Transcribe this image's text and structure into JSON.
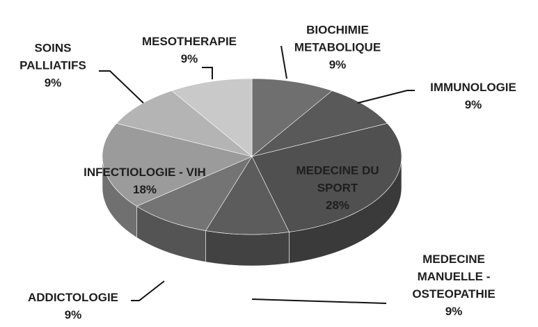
{
  "chart_data": {
    "type": "pie3d",
    "categories": [
      "BIOCHIMIE METABOLIQUE",
      "IMMUNOLOGIE",
      "MEDECINE DU SPORT",
      "MEDECINE MANUELLE - OSTEOPATHIE",
      "ADDICTOLOGIE",
      "INFECTIOLOGIE - VIH",
      "SOINS PALLIATIFS",
      "MESOTHERAPIE"
    ],
    "values": [
      9,
      9,
      28,
      9,
      9,
      18,
      9,
      9
    ],
    "value_labels": [
      "9%",
      "9%",
      "28%",
      "9%",
      "9%",
      "18%",
      "9%",
      "9%"
    ],
    "colors": [
      "#6f6f6f",
      "#595959",
      "#505050",
      "#5c5c5c",
      "#747474",
      "#9b9b9b",
      "#b4b4b4",
      "#c9c9c9"
    ]
  }
}
